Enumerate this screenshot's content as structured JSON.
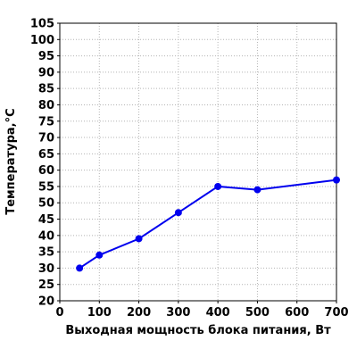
{
  "chart_data": {
    "type": "line",
    "title": "",
    "xlabel": "Выходная мощность блока питания, Вт",
    "ylabel": "Температура,°C",
    "xlim": [
      0,
      700
    ],
    "ylim": [
      20,
      105
    ],
    "xticks": [
      0,
      100,
      200,
      300,
      400,
      500,
      600,
      700
    ],
    "yticks": [
      20,
      25,
      30,
      35,
      40,
      45,
      50,
      55,
      60,
      65,
      70,
      75,
      80,
      85,
      90,
      95,
      100,
      105
    ],
    "grid": true,
    "series": [
      {
        "color": "#0000ee",
        "x": [
          50,
          100,
          200,
          300,
          400,
          500,
          700
        ],
        "y": [
          30,
          34,
          39,
          47,
          55,
          54,
          57
        ]
      }
    ]
  }
}
